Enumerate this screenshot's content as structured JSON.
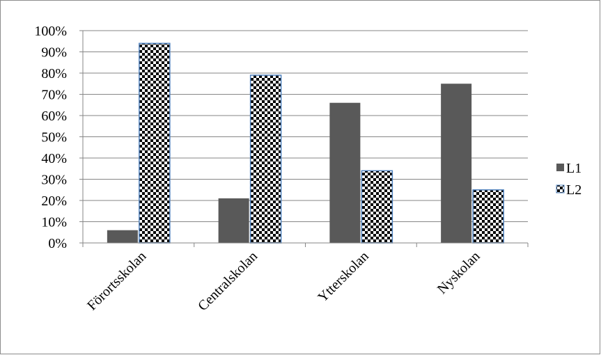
{
  "chart_data": {
    "type": "bar",
    "categories": [
      "Förortsskolan",
      "Centralskolan",
      "Ytterskolan",
      "Nyskolan"
    ],
    "series": [
      {
        "name": "L1",
        "values": [
          6,
          21,
          66,
          75
        ],
        "color": "#595959",
        "pattern": "solid"
      },
      {
        "name": "L2",
        "values": [
          94,
          79,
          34,
          25
        ],
        "color": "#000000",
        "pattern": "dotted-checker",
        "border": "#4f81bd"
      }
    ],
    "y_ticks": [
      "0%",
      "10%",
      "20%",
      "30%",
      "40%",
      "50%",
      "60%",
      "70%",
      "80%",
      "90%",
      "100%"
    ],
    "ylim": [
      0,
      100
    ],
    "grid": true,
    "legend": "right"
  }
}
